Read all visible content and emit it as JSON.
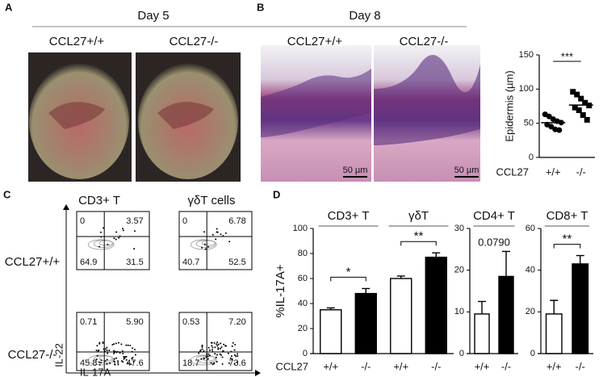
{
  "panel_labels": [
    "A",
    "B",
    "C",
    "D"
  ],
  "panel_a": {
    "title": "Day 5",
    "columns": [
      "CCL27+/+",
      "CCL27-/-"
    ]
  },
  "panel_b": {
    "title": "Day 8",
    "columns": [
      "CCL27+/+",
      "CCL27-/-"
    ],
    "scale_bars": [
      "50 µm",
      "50 µm"
    ]
  },
  "panel_c": {
    "columns": [
      "CD3+ T",
      "γδT cells"
    ],
    "rows": [
      "CCL27+/+",
      "CCL27-/-"
    ],
    "quadrants": [
      [
        [
          "0",
          "3.57",
          "64.9",
          "31.5"
        ],
        [
          "0",
          "6.78",
          "40.7",
          "52.5"
        ]
      ],
      [
        [
          "0.71",
          "5.90",
          "45.8",
          "47.6"
        ],
        [
          "0.53",
          "7.20",
          "18.7",
          "73.6"
        ]
      ]
    ],
    "y_label": "IL-22",
    "x_label": "IL-17A"
  },
  "chart_data": [
    {
      "type": "strip",
      "y_label": "Epidermis (µm)",
      "x_label": "CCL27",
      "categories": [
        "+/+",
        "-/-"
      ],
      "series": [
        {
          "marker": "circle",
          "color": "#000000",
          "values": [
            63,
            60,
            56,
            53,
            51,
            48,
            45,
            41,
            40
          ]
        },
        {
          "marker": "square",
          "color": "#000000",
          "values": [
            96,
            92,
            86,
            80,
            76,
            73,
            69,
            62,
            55
          ]
        }
      ],
      "ylim": [
        0,
        150
      ],
      "yticks": [
        0,
        50,
        100,
        150
      ],
      "annotations": [
        {
          "text": "***",
          "bracket": true
        }
      ]
    },
    {
      "type": "bar",
      "group_titles": [
        "CD3+ T",
        "γδT"
      ],
      "y_label": "%IL-17A+",
      "x_label": "CCL27",
      "categories": [
        "+/+",
        "-/-",
        "+/+",
        "-/-"
      ],
      "values": [
        35,
        48,
        60,
        77
      ],
      "errors": [
        1.5,
        4,
        2,
        3.5
      ],
      "colors": [
        "#ffffff",
        "#000000",
        "#ffffff",
        "#000000"
      ],
      "ylim": [
        0,
        100
      ],
      "yticks": [
        0,
        20,
        40,
        60,
        80,
        100
      ],
      "annotations": [
        {
          "text": "*",
          "bracket": true
        },
        {
          "text": "**",
          "bracket": true
        }
      ]
    },
    {
      "type": "bar",
      "group_titles": [
        "CD4+ T"
      ],
      "categories": [
        "+/+",
        "-/-"
      ],
      "values": [
        9.5,
        18.5
      ],
      "errors": [
        3,
        6
      ],
      "colors": [
        "#ffffff",
        "#000000"
      ],
      "ylim": [
        0,
        30
      ],
      "yticks": [
        0,
        10,
        20,
        30
      ],
      "annotations": [
        {
          "text": "0.0790",
          "bracket": false
        }
      ]
    },
    {
      "type": "bar",
      "group_titles": [
        "CD8+ T"
      ],
      "categories": [
        "+/+",
        "-/-"
      ],
      "values": [
        19,
        43
      ],
      "errors": [
        6.5,
        4
      ],
      "colors": [
        "#ffffff",
        "#000000"
      ],
      "ylim": [
        0,
        60
      ],
      "yticks": [
        0,
        20,
        40,
        60
      ],
      "annotations": [
        {
          "text": "**",
          "bracket": true
        }
      ]
    }
  ]
}
